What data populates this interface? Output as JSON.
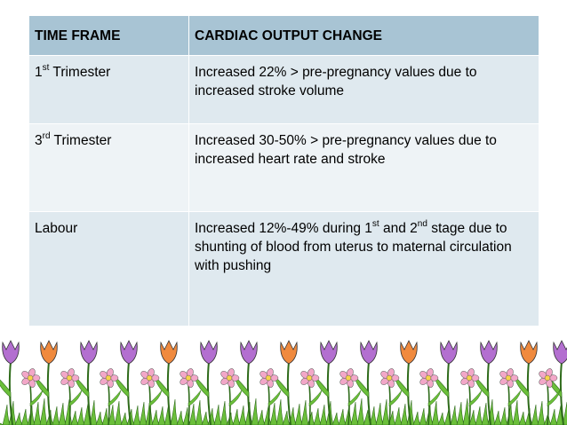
{
  "table": {
    "headers": [
      "TIME FRAME",
      "CARDIAC OUTPUT CHANGE"
    ],
    "rows": [
      {
        "time_base": "1",
        "time_sup": "st",
        "time_rest": " Trimester",
        "change_text": "Increased 22% > pre-pregnancy values due to increased stroke volume"
      },
      {
        "time_base": "3",
        "time_sup": "rd",
        "time_rest": " Trimester",
        "change_text": "Increased 30-50% > pre-pregnancy values due to increased heart rate and stroke"
      },
      {
        "time_label": "Labour",
        "change_part1": "Increased 12%-49% during 1",
        "change_sup1": "st",
        "change_part2": " and 2",
        "change_sup2": "nd",
        "change_part3": " stage due to shunting of blood from uterus to maternal circulation with pushing"
      }
    ]
  },
  "colors": {
    "header_bg": "#a8c4d4",
    "row_bg_a": "#dfe9ef",
    "row_bg_b": "#eef3f6",
    "grass": "#6bbf3a",
    "tulip_purple": "#b36fd0",
    "tulip_orange": "#f08a3e",
    "daisy_pink": "#f2a7c8"
  },
  "decoration": {
    "icon": "tulip-flower-border-icon"
  }
}
